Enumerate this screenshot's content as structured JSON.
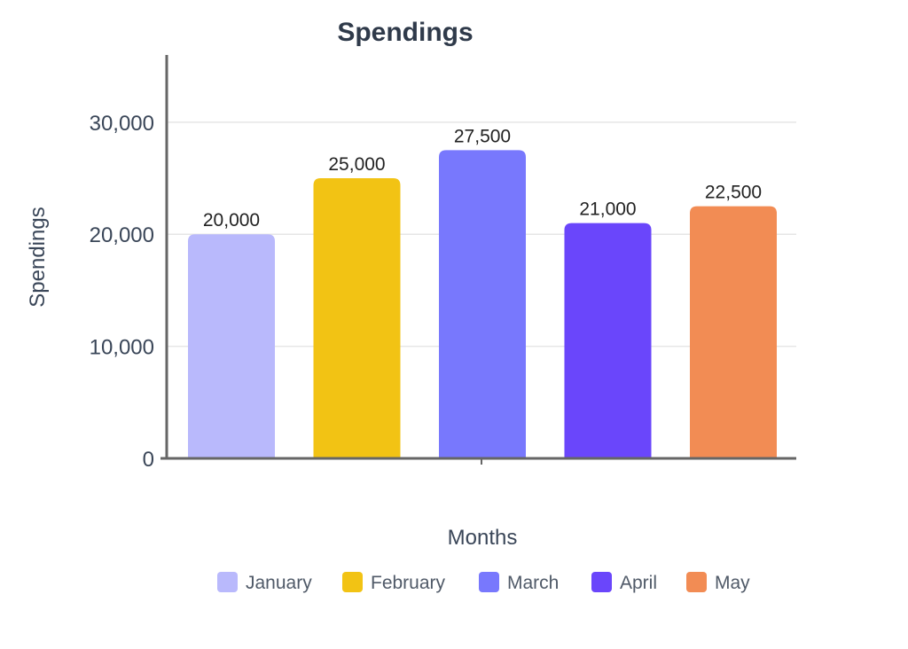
{
  "chart_data": {
    "type": "bar",
    "title": "Spendings",
    "xlabel": "Months",
    "ylabel": "Spendings",
    "categories": [
      "January",
      "February",
      "March",
      "April",
      "May"
    ],
    "values": [
      20000,
      25000,
      27500,
      21000,
      22500
    ],
    "value_labels": [
      "20,000",
      "25,000",
      "27,500",
      "21,000",
      "22,500"
    ],
    "colors": [
      "#b9b9fc",
      "#f2c314",
      "#7878fd",
      "#6a46fb",
      "#f28c54"
    ],
    "ylim": [
      0,
      36000
    ],
    "yticks": [
      0,
      10000,
      20000,
      30000
    ],
    "ytick_labels": [
      "0",
      "10,000",
      "20,000",
      "30,000"
    ],
    "grid": true,
    "legend": {
      "position": "bottom",
      "entries": [
        "January",
        "February",
        "March",
        "April",
        "May"
      ]
    }
  }
}
